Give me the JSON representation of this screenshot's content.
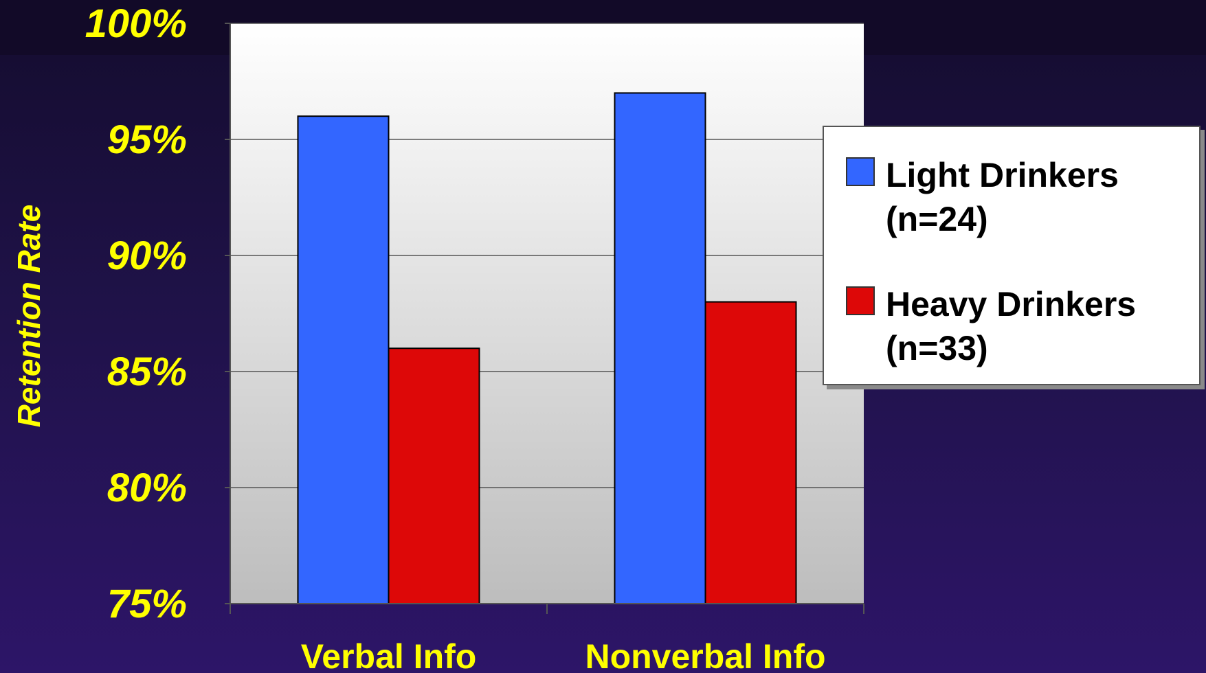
{
  "chart_data": {
    "type": "bar",
    "categories": [
      "Verbal Info",
      "Nonverbal Info"
    ],
    "series": [
      {
        "name": "Light Drinkers (n=24)",
        "values": [
          96,
          97
        ],
        "color": "#3366ff"
      },
      {
        "name": "Heavy Drinkers (n=33)",
        "values": [
          86,
          88
        ],
        "color": "#dd0808"
      }
    ],
    "ylabel": "Retention Rate",
    "xlabel": "",
    "ylim": [
      75,
      100
    ],
    "yticks": [
      "75%",
      "80%",
      "85%",
      "90%",
      "95%",
      "100%"
    ],
    "ytick_values": [
      75,
      80,
      85,
      90,
      95,
      100
    ],
    "grid": true,
    "legend_position": "right",
    "text_color": "#ffff00"
  },
  "legend": {
    "items": [
      {
        "line1": "Light Drinkers",
        "line2": "(n=24)"
      },
      {
        "line1": "Heavy Drinkers",
        "line2": "(n=33)"
      }
    ]
  }
}
